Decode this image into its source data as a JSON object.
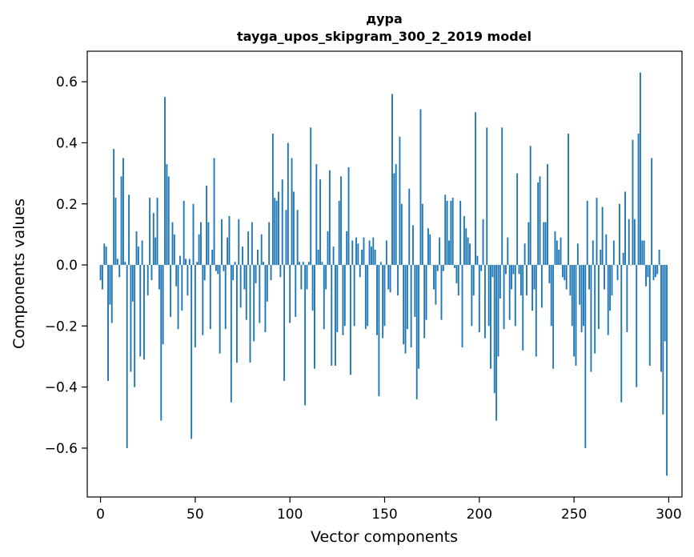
{
  "chart_data": {
    "type": "bar",
    "title": "дура",
    "subtitle": "tayga_upos_skipgram_300_2_2019 model",
    "xlabel": "Vector components",
    "ylabel": "Components values",
    "xlim": [
      -7,
      307
    ],
    "ylim": [
      -0.76,
      0.7
    ],
    "xticks": [
      0,
      50,
      100,
      150,
      200,
      250,
      300
    ],
    "xtick_labels": [
      "0",
      "50",
      "100",
      "150",
      "200",
      "250",
      "300"
    ],
    "yticks": [
      -0.6,
      -0.4,
      -0.2,
      0.0,
      0.2,
      0.4,
      0.6
    ],
    "ytick_labels": [
      "−0.6",
      "−0.4",
      "−0.2",
      "0.0",
      "0.2",
      "0.4",
      "0.6"
    ],
    "grid": false,
    "bar_color": "#1f77b4",
    "x": [
      0,
      1,
      2,
      3,
      4,
      5,
      6,
      7,
      8,
      9,
      10,
      11,
      12,
      13,
      14,
      15,
      16,
      17,
      18,
      19,
      20,
      21,
      22,
      23,
      24,
      25,
      26,
      27,
      28,
      29,
      30,
      31,
      32,
      33,
      34,
      35,
      36,
      37,
      38,
      39,
      40,
      41,
      42,
      43,
      44,
      45,
      46,
      47,
      48,
      49,
      50,
      51,
      52,
      53,
      54,
      55,
      56,
      57,
      58,
      59,
      60,
      61,
      62,
      63,
      64,
      65,
      66,
      67,
      68,
      69,
      70,
      71,
      72,
      73,
      74,
      75,
      76,
      77,
      78,
      79,
      80,
      81,
      82,
      83,
      84,
      85,
      86,
      87,
      88,
      89,
      90,
      91,
      92,
      93,
      94,
      95,
      96,
      97,
      98,
      99,
      100,
      101,
      102,
      103,
      104,
      105,
      106,
      107,
      108,
      109,
      110,
      111,
      112,
      113,
      114,
      115,
      116,
      117,
      118,
      119,
      120,
      121,
      122,
      123,
      124,
      125,
      126,
      127,
      128,
      129,
      130,
      131,
      132,
      133,
      134,
      135,
      136,
      137,
      138,
      139,
      140,
      141,
      142,
      143,
      144,
      145,
      146,
      147,
      148,
      149,
      150,
      151,
      152,
      153,
      154,
      155,
      156,
      157,
      158,
      159,
      160,
      161,
      162,
      163,
      164,
      165,
      166,
      167,
      168,
      169,
      170,
      171,
      172,
      173,
      174,
      175,
      176,
      177,
      178,
      179,
      180,
      181,
      182,
      183,
      184,
      185,
      186,
      187,
      188,
      189,
      190,
      191,
      192,
      193,
      194,
      195,
      196,
      197,
      198,
      199,
      200,
      201,
      202,
      203,
      204,
      205,
      206,
      207,
      208,
      209,
      210,
      211,
      212,
      213,
      214,
      215,
      216,
      217,
      218,
      219,
      220,
      221,
      222,
      223,
      224,
      225,
      226,
      227,
      228,
      229,
      230,
      231,
      232,
      233,
      234,
      235,
      236,
      237,
      238,
      239,
      240,
      241,
      242,
      243,
      244,
      245,
      246,
      247,
      248,
      249,
      250,
      251,
      252,
      253,
      254,
      255,
      256,
      257,
      258,
      259,
      260,
      261,
      262,
      263,
      264,
      265,
      266,
      267,
      268,
      269,
      270,
      271,
      272,
      273,
      274,
      275,
      276,
      277,
      278,
      279,
      280,
      281,
      282,
      283,
      284,
      285,
      286,
      287,
      288,
      289,
      290,
      291,
      292,
      293,
      294,
      295,
      296,
      297,
      298,
      299
    ],
    "values": [
      -0.05,
      -0.08,
      0.07,
      0.06,
      -0.38,
      -0.13,
      -0.19,
      0.38,
      0.22,
      0.02,
      -0.04,
      0.29,
      0.35,
      0.01,
      -0.6,
      0.23,
      -0.35,
      -0.12,
      -0.4,
      0.11,
      0.06,
      -0.3,
      0.08,
      -0.31,
      0.0,
      -0.1,
      0.22,
      -0.05,
      0.17,
      0.09,
      0.22,
      -0.08,
      -0.51,
      -0.26,
      0.55,
      0.33,
      0.29,
      -0.17,
      0.14,
      0.1,
      -0.07,
      -0.21,
      0.03,
      -0.15,
      0.21,
      0.02,
      -0.1,
      0.02,
      -0.57,
      0.2,
      -0.27,
      0.01,
      0.1,
      0.14,
      -0.23,
      -0.05,
      0.26,
      0.14,
      -0.21,
      0.05,
      0.35,
      -0.02,
      -0.03,
      -0.29,
      0.15,
      -0.02,
      -0.21,
      0.09,
      0.16,
      -0.45,
      -0.05,
      0.01,
      -0.32,
      0.15,
      -0.14,
      0.06,
      -0.08,
      -0.18,
      0.11,
      -0.32,
      0.14,
      -0.25,
      -0.06,
      0.05,
      -0.19,
      0.1,
      0.01,
      -0.22,
      -0.12,
      0.14,
      -0.05,
      0.43,
      0.22,
      0.21,
      0.24,
      -0.04,
      0.28,
      -0.38,
      0.18,
      0.4,
      -0.19,
      0.35,
      0.24,
      -0.17,
      0.18,
      0.01,
      -0.08,
      0.01,
      -0.46,
      -0.08,
      0.01,
      0.45,
      -0.15,
      -0.34,
      0.33,
      0.05,
      0.28,
      0.01,
      -0.21,
      -0.08,
      0.11,
      0.31,
      -0.33,
      0.06,
      -0.33,
      -0.22,
      0.21,
      0.29,
      -0.23,
      -0.2,
      0.11,
      0.32,
      -0.36,
      0.08,
      -0.2,
      0.09,
      0.07,
      -0.04,
      0.05,
      0.09,
      -0.21,
      -0.2,
      0.08,
      0.06,
      0.09,
      0.05,
      -0.23,
      -0.43,
      0.01,
      -0.24,
      -0.2,
      0.08,
      -0.08,
      -0.09,
      0.56,
      0.3,
      0.33,
      -0.1,
      0.42,
      0.2,
      -0.26,
      -0.29,
      -0.21,
      0.25,
      -0.27,
      0.13,
      -0.17,
      -0.44,
      -0.34,
      0.51,
      0.2,
      -0.24,
      -0.18,
      0.12,
      0.1,
      0.0,
      -0.08,
      -0.13,
      -0.02,
      0.09,
      -0.18,
      -0.02,
      0.23,
      0.21,
      0.08,
      0.21,
      0.22,
      -0.01,
      -0.06,
      -0.1,
      0.21,
      -0.27,
      0.16,
      0.12,
      0.09,
      0.07,
      -0.2,
      -0.1,
      0.5,
      0.03,
      -0.22,
      -0.02,
      0.15,
      -0.24,
      0.45,
      -0.2,
      -0.34,
      -0.04,
      -0.42,
      -0.51,
      -0.3,
      -0.11,
      0.45,
      -0.21,
      -0.03,
      0.09,
      -0.18,
      -0.08,
      -0.03,
      -0.2,
      0.3,
      -0.03,
      -0.1,
      -0.28,
      0.07,
      -0.1,
      0.14,
      0.39,
      -0.15,
      -0.08,
      -0.3,
      0.27,
      0.29,
      -0.14,
      0.14,
      0.14,
      0.33,
      -0.06,
      -0.2,
      -0.34,
      0.11,
      0.08,
      0.05,
      0.09,
      -0.04,
      -0.05,
      -0.08,
      0.43,
      -0.1,
      -0.2,
      -0.3,
      -0.33,
      0.07,
      -0.13,
      -0.22,
      -0.2,
      -0.6,
      0.21,
      -0.08,
      -0.35,
      0.08,
      -0.29,
      0.22,
      -0.21,
      0.05,
      0.19,
      -0.08,
      0.1,
      -0.23,
      -0.15,
      -0.1,
      0.08,
      0.0,
      -0.05,
      0.2,
      -0.45,
      0.04,
      0.24,
      -0.22,
      0.15,
      0.0,
      0.41,
      0.15,
      -0.4,
      0.43,
      0.63,
      0.08,
      0.08,
      -0.07,
      -0.04,
      -0.33,
      0.35,
      -0.05,
      -0.04,
      -0.03,
      0.05,
      -0.35,
      -0.49,
      -0.25,
      -0.69
    ]
  }
}
